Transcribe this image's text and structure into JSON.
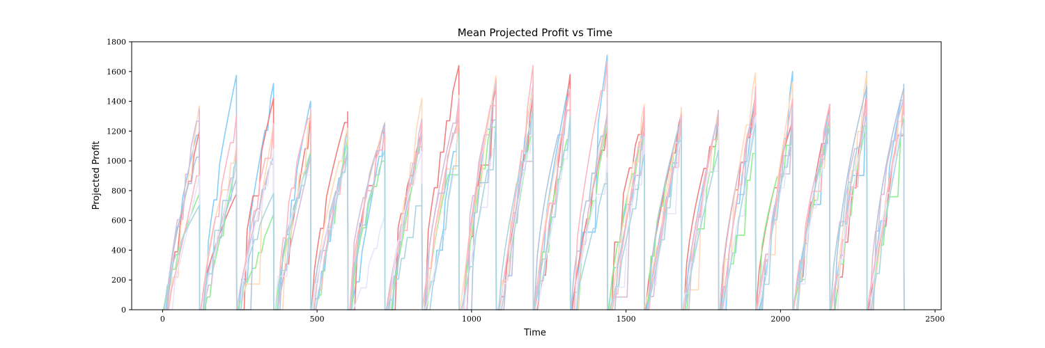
{
  "chart_data": {
    "type": "line",
    "title": "Mean Projected Profit vs Time",
    "xlabel": "Time",
    "ylabel": "Projected Profit",
    "xlim": [
      -100,
      2520
    ],
    "ylim": [
      0,
      1800
    ],
    "xticks": [
      0,
      500,
      1000,
      1500,
      2000,
      2500
    ],
    "yticks": [
      0,
      200,
      400,
      600,
      800,
      1000,
      1200,
      1400,
      1600,
      1800
    ],
    "grid": false,
    "episode_length": 120,
    "colors": {
      "lightskyblue": "#87cefa",
      "lightcoral": "#f08080",
      "lightgreen": "#90ee90",
      "peachpuff": "#ffdab9",
      "lightsteelblue": "#b0c4de",
      "thistle": "#d8bfd8",
      "lightpink": "#ffb6c1",
      "lavender": "#e6e6fa",
      "powderblue": "#a9d6e0"
    },
    "series": [
      {
        "color": "#87cefa",
        "finals": [
          1250,
          1575,
          1520,
          1400,
          1220,
          1250,
          1240,
          1290,
          1530,
          1510,
          1560,
          1710,
          1260,
          1330,
          1320,
          1330,
          1600,
          1360,
          1600,
          1515
        ]
      },
      {
        "color": "#f08080",
        "finals": [
          1200,
          780,
          1420,
          1310,
          1330,
          1250,
          1200,
          1640,
          1500,
          1440,
          1580,
          1240,
          1310,
          1320,
          1290,
          1380,
          1270,
          1380,
          1440,
          1420
        ]
      },
      {
        "color": "#90ee90",
        "finals": [
          780,
          980,
          640,
          1060,
          1150,
          1050,
          1200,
          1200,
          1400,
          1270,
          1230,
          1240,
          1220,
          1300,
          1200,
          1140,
          1230,
          1280,
          1260,
          1300
        ]
      },
      {
        "color": "#ffdab9",
        "finals": [
          1370,
          1090,
          1240,
          1320,
          1220,
          1260,
          1420,
          1440,
          1570,
          1490,
          1420,
          1310,
          1380,
          1360,
          1340,
          1590,
          1530,
          1320,
          1590,
          1490
        ]
      },
      {
        "color": "#b0c4de",
        "finals": [
          1080,
          880,
          1030,
          1010,
          1060,
          1250,
          1230,
          1290,
          1350,
          1420,
          1480,
          1320,
          1220,
          1290,
          1340,
          1440,
          1400,
          1300,
          1500,
          1490
        ]
      },
      {
        "color": "#d8bfd8",
        "finals": [
          1350,
          1070,
          1050,
          1020,
          1050,
          1230,
          1280,
          1420,
          1510,
          1540,
          1470,
          1270,
          1230,
          1310,
          1330,
          1380,
          1320,
          1290,
          1390,
          1420
        ]
      },
      {
        "color": "#ffb6c1",
        "finals": [
          990,
          1310,
          1250,
          1350,
          1090,
          1190,
          1260,
          1400,
          1550,
          1640,
          1480,
          1670,
          1360,
          1300,
          1330,
          1500,
          1420,
          1380,
          1420,
          1400
        ]
      },
      {
        "color": "#e6e6fa",
        "finals": [
          900,
          980,
          1080,
          1010,
          1000,
          630,
          1060,
          1110,
          1180,
          1290,
          1230,
          1020,
          1160,
          1180,
          1230,
          1300,
          1190,
          1160,
          1280,
          1300
        ]
      },
      {
        "color": "#a9d6e0",
        "finals": [
          700,
          1000,
          780,
          1040,
          1100,
          1070,
          840,
          1190,
          1280,
          1320,
          1300,
          920,
          1040,
          1250,
          1070,
          1250,
          1200,
          1220,
          1300,
          1280
        ]
      }
    ]
  }
}
